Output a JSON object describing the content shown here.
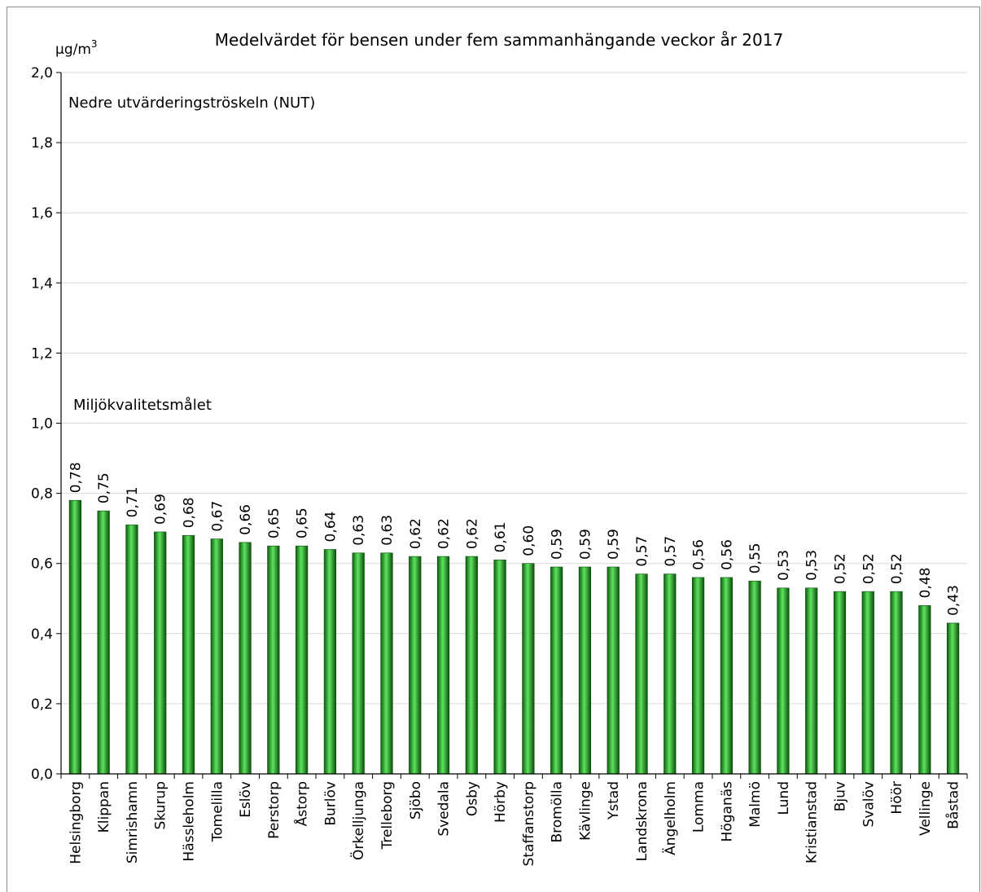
{
  "chart_data": {
    "type": "bar",
    "title": "Medelvärdet för bensen under fem sammanhängande veckor år 2017",
    "ylabel": "μg/m",
    "ylabel_sup": "3",
    "ylim": [
      0,
      2.0
    ],
    "yticks": [
      "0,0",
      "0,2",
      "0,4",
      "0,6",
      "0,8",
      "1,0",
      "1,2",
      "1,4",
      "1,6",
      "1,8",
      "2,0"
    ],
    "grid": true,
    "categories": [
      "Helsingborg",
      "Klippan",
      "Simrishamn",
      "Skurup",
      "Hässleholm",
      "Tomelilla",
      "Eslöv",
      "Perstorp",
      "Åstorp",
      "Burlöv",
      "Örkelljunga",
      "Trelleborg",
      "Sjöbo",
      "Svedala",
      "Osby",
      "Hörby",
      "Staffanstorp",
      "Bromölla",
      "Kävlinge",
      "Ystad",
      "Landskrona",
      "Ängelholm",
      "Lomma",
      "Höganäs",
      "Malmö",
      "Lund",
      "Kristianstad",
      "Bjuv",
      "Svalöv",
      "Höör",
      "Vellinge",
      "Båstad"
    ],
    "values": [
      0.78,
      0.75,
      0.71,
      0.69,
      0.68,
      0.67,
      0.66,
      0.65,
      0.65,
      0.64,
      0.63,
      0.63,
      0.62,
      0.62,
      0.62,
      0.61,
      0.6,
      0.59,
      0.59,
      0.59,
      0.57,
      0.57,
      0.56,
      0.56,
      0.55,
      0.53,
      0.53,
      0.52,
      0.52,
      0.52,
      0.48,
      0.43
    ],
    "value_labels": [
      "0,78",
      "0,75",
      "0,71",
      "0,69",
      "0,68",
      "0,67",
      "0,66",
      "0,65",
      "0,65",
      "0,64",
      "0,63",
      "0,63",
      "0,62",
      "0,62",
      "0,62",
      "0,61",
      "0,60",
      "0,59",
      "0,59",
      "0,59",
      "0,57",
      "0,57",
      "0,56",
      "0,56",
      "0,55",
      "0,53",
      "0,53",
      "0,52",
      "0,52",
      "0,52",
      "0,48",
      "0,43"
    ],
    "reference_lines": [
      {
        "label": "Nedre utvärderingströskeln (NUT)",
        "value": 2.0,
        "color": "#f2e600"
      },
      {
        "label": "Miljökvalitetsmålet",
        "value": 1.0,
        "color": "#22e622"
      }
    ],
    "bar_color": "#1e9e1e"
  }
}
